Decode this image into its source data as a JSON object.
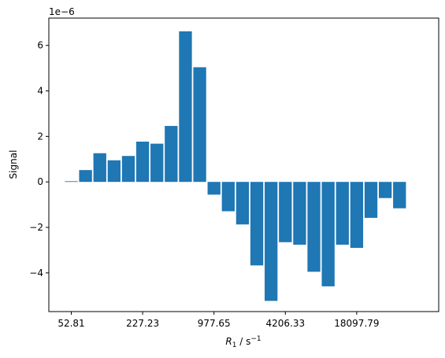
{
  "chart_data": {
    "type": "bar",
    "xlabel": "R_1 / s^-1",
    "xlabel_parts": {
      "base": "R",
      "sub": "1",
      "mid": " / s",
      "sup": "−1"
    },
    "ylabel": "Signal",
    "y_exponent_label": "1e−6",
    "ylim": [
      -5.7,
      7.2
    ],
    "yticks": [
      -4,
      -2,
      0,
      2,
      4,
      6
    ],
    "ytick_labels": [
      "−4",
      "−2",
      "0",
      "2",
      "4",
      "6"
    ],
    "bar_color": "#1f77b4",
    "categories": [
      "52.81",
      "",
      "",
      "",
      "",
      "227.23",
      "",
      "",
      "",
      "",
      "977.65",
      "",
      "",
      "",
      "",
      "4206.33",
      "",
      "",
      "",
      "",
      "18097.79",
      "",
      "",
      ""
    ],
    "xtick_labels": [
      "52.81",
      "227.23",
      "977.65",
      "4206.33",
      "18097.79"
    ],
    "values": [
      0.03,
      0.52,
      1.26,
      0.95,
      1.14,
      1.77,
      1.68,
      2.46,
      6.62,
      5.04,
      -0.56,
      -1.29,
      -1.87,
      -3.67,
      -5.23,
      -2.65,
      -2.76,
      -3.95,
      -4.59,
      -2.76,
      -2.9,
      -1.58,
      -0.71,
      -1.16
    ]
  }
}
